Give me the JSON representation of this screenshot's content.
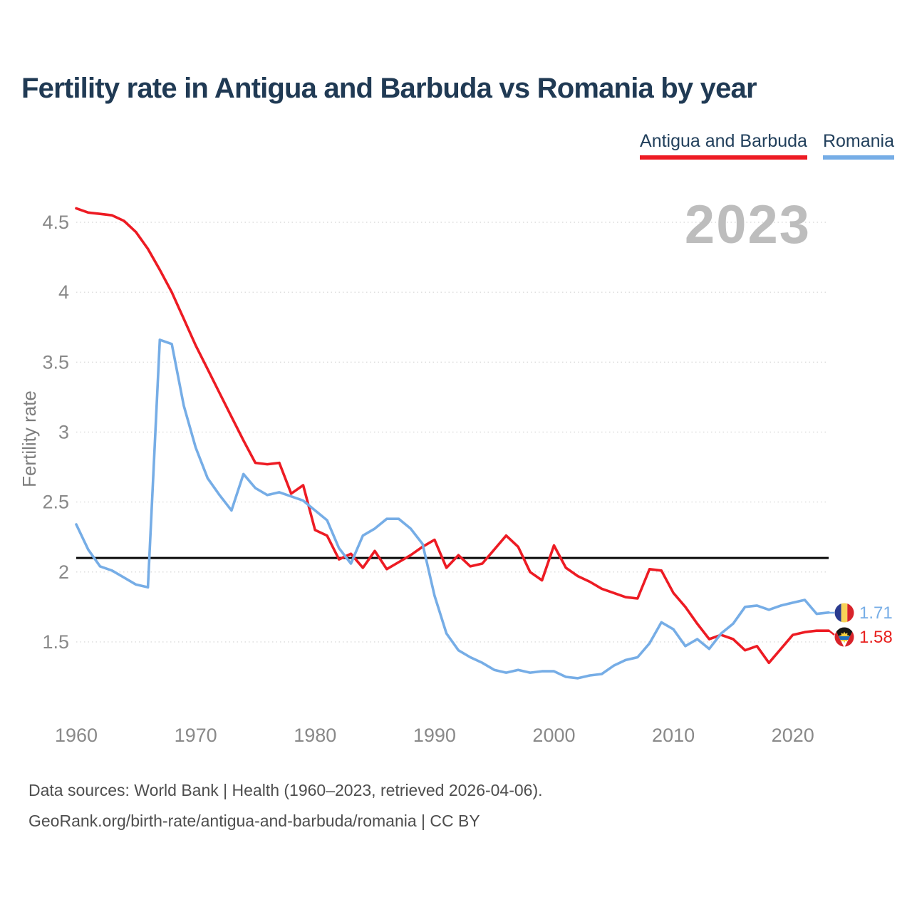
{
  "title": "Fertility rate in Antigua and Barbuda vs Romania by year",
  "watermark": "2023",
  "legend": [
    {
      "label": "Antigua and Barbuda",
      "color": "#ed1b23"
    },
    {
      "label": "Romania",
      "color": "#76ade6"
    }
  ],
  "end_labels": [
    {
      "series": "Romania",
      "value": "1.71",
      "flag": "romania-flag"
    },
    {
      "series": "Antigua and Barbuda",
      "value": "1.58",
      "flag": "antigua-and-barbuda-flag"
    }
  ],
  "footer": {
    "line1": "Data sources: World Bank | Health (1960–2023, retrieved 2026-04-06).",
    "line2": "GeoRank.org/birth-rate/antigua-and-barbuda/romania | CC BY"
  },
  "chart_data": {
    "type": "line",
    "title": "Fertility rate in Antigua and Barbuda vs Romania by year",
    "xlabel": "",
    "ylabel": "Fertility rate",
    "xlim": [
      1960,
      2023
    ],
    "ylim": [
      1.1,
      4.75
    ],
    "grid": true,
    "legend_position": "top-right",
    "x_ticks": [
      1960,
      1970,
      1980,
      1990,
      2000,
      2010,
      2020
    ],
    "y_ticks": [
      1.5,
      2,
      2.5,
      3,
      3.5,
      4,
      4.5
    ],
    "reference_line": {
      "value": 2.1,
      "meaning": "replacement-level fertility",
      "color": "#0a0a0a"
    },
    "years": [
      1960,
      1961,
      1962,
      1963,
      1964,
      1965,
      1966,
      1967,
      1968,
      1969,
      1970,
      1971,
      1972,
      1973,
      1974,
      1975,
      1976,
      1977,
      1978,
      1979,
      1980,
      1981,
      1982,
      1983,
      1984,
      1985,
      1986,
      1987,
      1988,
      1989,
      1990,
      1991,
      1992,
      1993,
      1994,
      1995,
      1996,
      1997,
      1998,
      1999,
      2000,
      2001,
      2002,
      2003,
      2004,
      2005,
      2006,
      2007,
      2008,
      2009,
      2010,
      2011,
      2012,
      2013,
      2014,
      2015,
      2016,
      2017,
      2018,
      2019,
      2020,
      2021,
      2022,
      2023
    ],
    "series": [
      {
        "name": "Antigua and Barbuda",
        "color": "#ed1b23",
        "final_value": 1.58,
        "values": [
          4.6,
          4.57,
          4.56,
          4.55,
          4.51,
          4.43,
          4.31,
          4.16,
          4.0,
          3.81,
          3.62,
          3.45,
          3.28,
          3.11,
          2.94,
          2.78,
          2.77,
          2.78,
          2.56,
          2.62,
          2.3,
          2.26,
          2.09,
          2.13,
          2.03,
          2.15,
          2.02,
          2.07,
          2.12,
          2.18,
          2.23,
          2.03,
          2.12,
          2.04,
          2.06,
          2.16,
          2.26,
          2.18,
          2.0,
          1.94,
          2.19,
          2.03,
          1.97,
          1.93,
          1.88,
          1.85,
          1.82,
          1.81,
          2.02,
          2.01,
          1.85,
          1.75,
          1.63,
          1.52,
          1.55,
          1.52,
          1.44,
          1.47,
          1.35,
          1.45,
          1.55,
          1.57,
          1.58,
          1.58
        ]
      },
      {
        "name": "Romania",
        "color": "#76ade6",
        "final_value": 1.71,
        "values": [
          2.34,
          2.16,
          2.04,
          2.01,
          1.96,
          1.91,
          1.89,
          3.66,
          3.63,
          3.19,
          2.89,
          2.67,
          2.55,
          2.44,
          2.7,
          2.6,
          2.55,
          2.57,
          2.54,
          2.51,
          2.44,
          2.37,
          2.17,
          2.06,
          2.26,
          2.31,
          2.38,
          2.38,
          2.31,
          2.2,
          1.83,
          1.56,
          1.44,
          1.39,
          1.35,
          1.3,
          1.28,
          1.3,
          1.28,
          1.29,
          1.29,
          1.25,
          1.24,
          1.26,
          1.27,
          1.33,
          1.37,
          1.39,
          1.49,
          1.64,
          1.59,
          1.47,
          1.52,
          1.45,
          1.56,
          1.63,
          1.75,
          1.76,
          1.73,
          1.76,
          1.78,
          1.8,
          1.7,
          1.71
        ]
      }
    ]
  }
}
